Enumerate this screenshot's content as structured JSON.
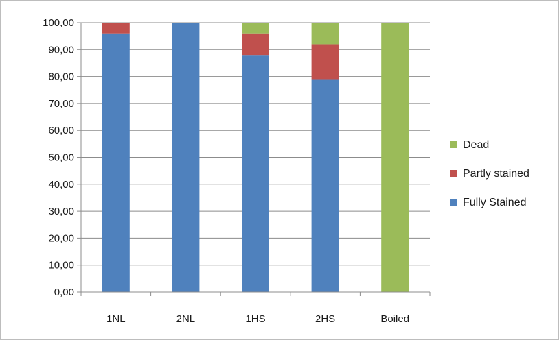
{
  "chart_data": {
    "type": "bar",
    "stacked": true,
    "categories": [
      "1NL",
      "2NL",
      "1HS",
      "2HS",
      "Boiled"
    ],
    "series": [
      {
        "name": "Fully Stained",
        "color": "#4f81bd",
        "values": [
          96,
          100,
          88,
          79,
          0
        ]
      },
      {
        "name": "Partly stained",
        "color": "#c0504d",
        "values": [
          4,
          0,
          8,
          13,
          0
        ]
      },
      {
        "name": "Dead",
        "color": "#9bbb59",
        "values": [
          0,
          0,
          4,
          8,
          100
        ]
      }
    ],
    "ylim": [
      0,
      100
    ],
    "yticks": [
      "0,00",
      "10,00",
      "20,00",
      "30,00",
      "40,00",
      "50,00",
      "60,00",
      "70,00",
      "80,00",
      "90,00",
      "100,00"
    ],
    "grid": true,
    "legend_position": "right"
  }
}
